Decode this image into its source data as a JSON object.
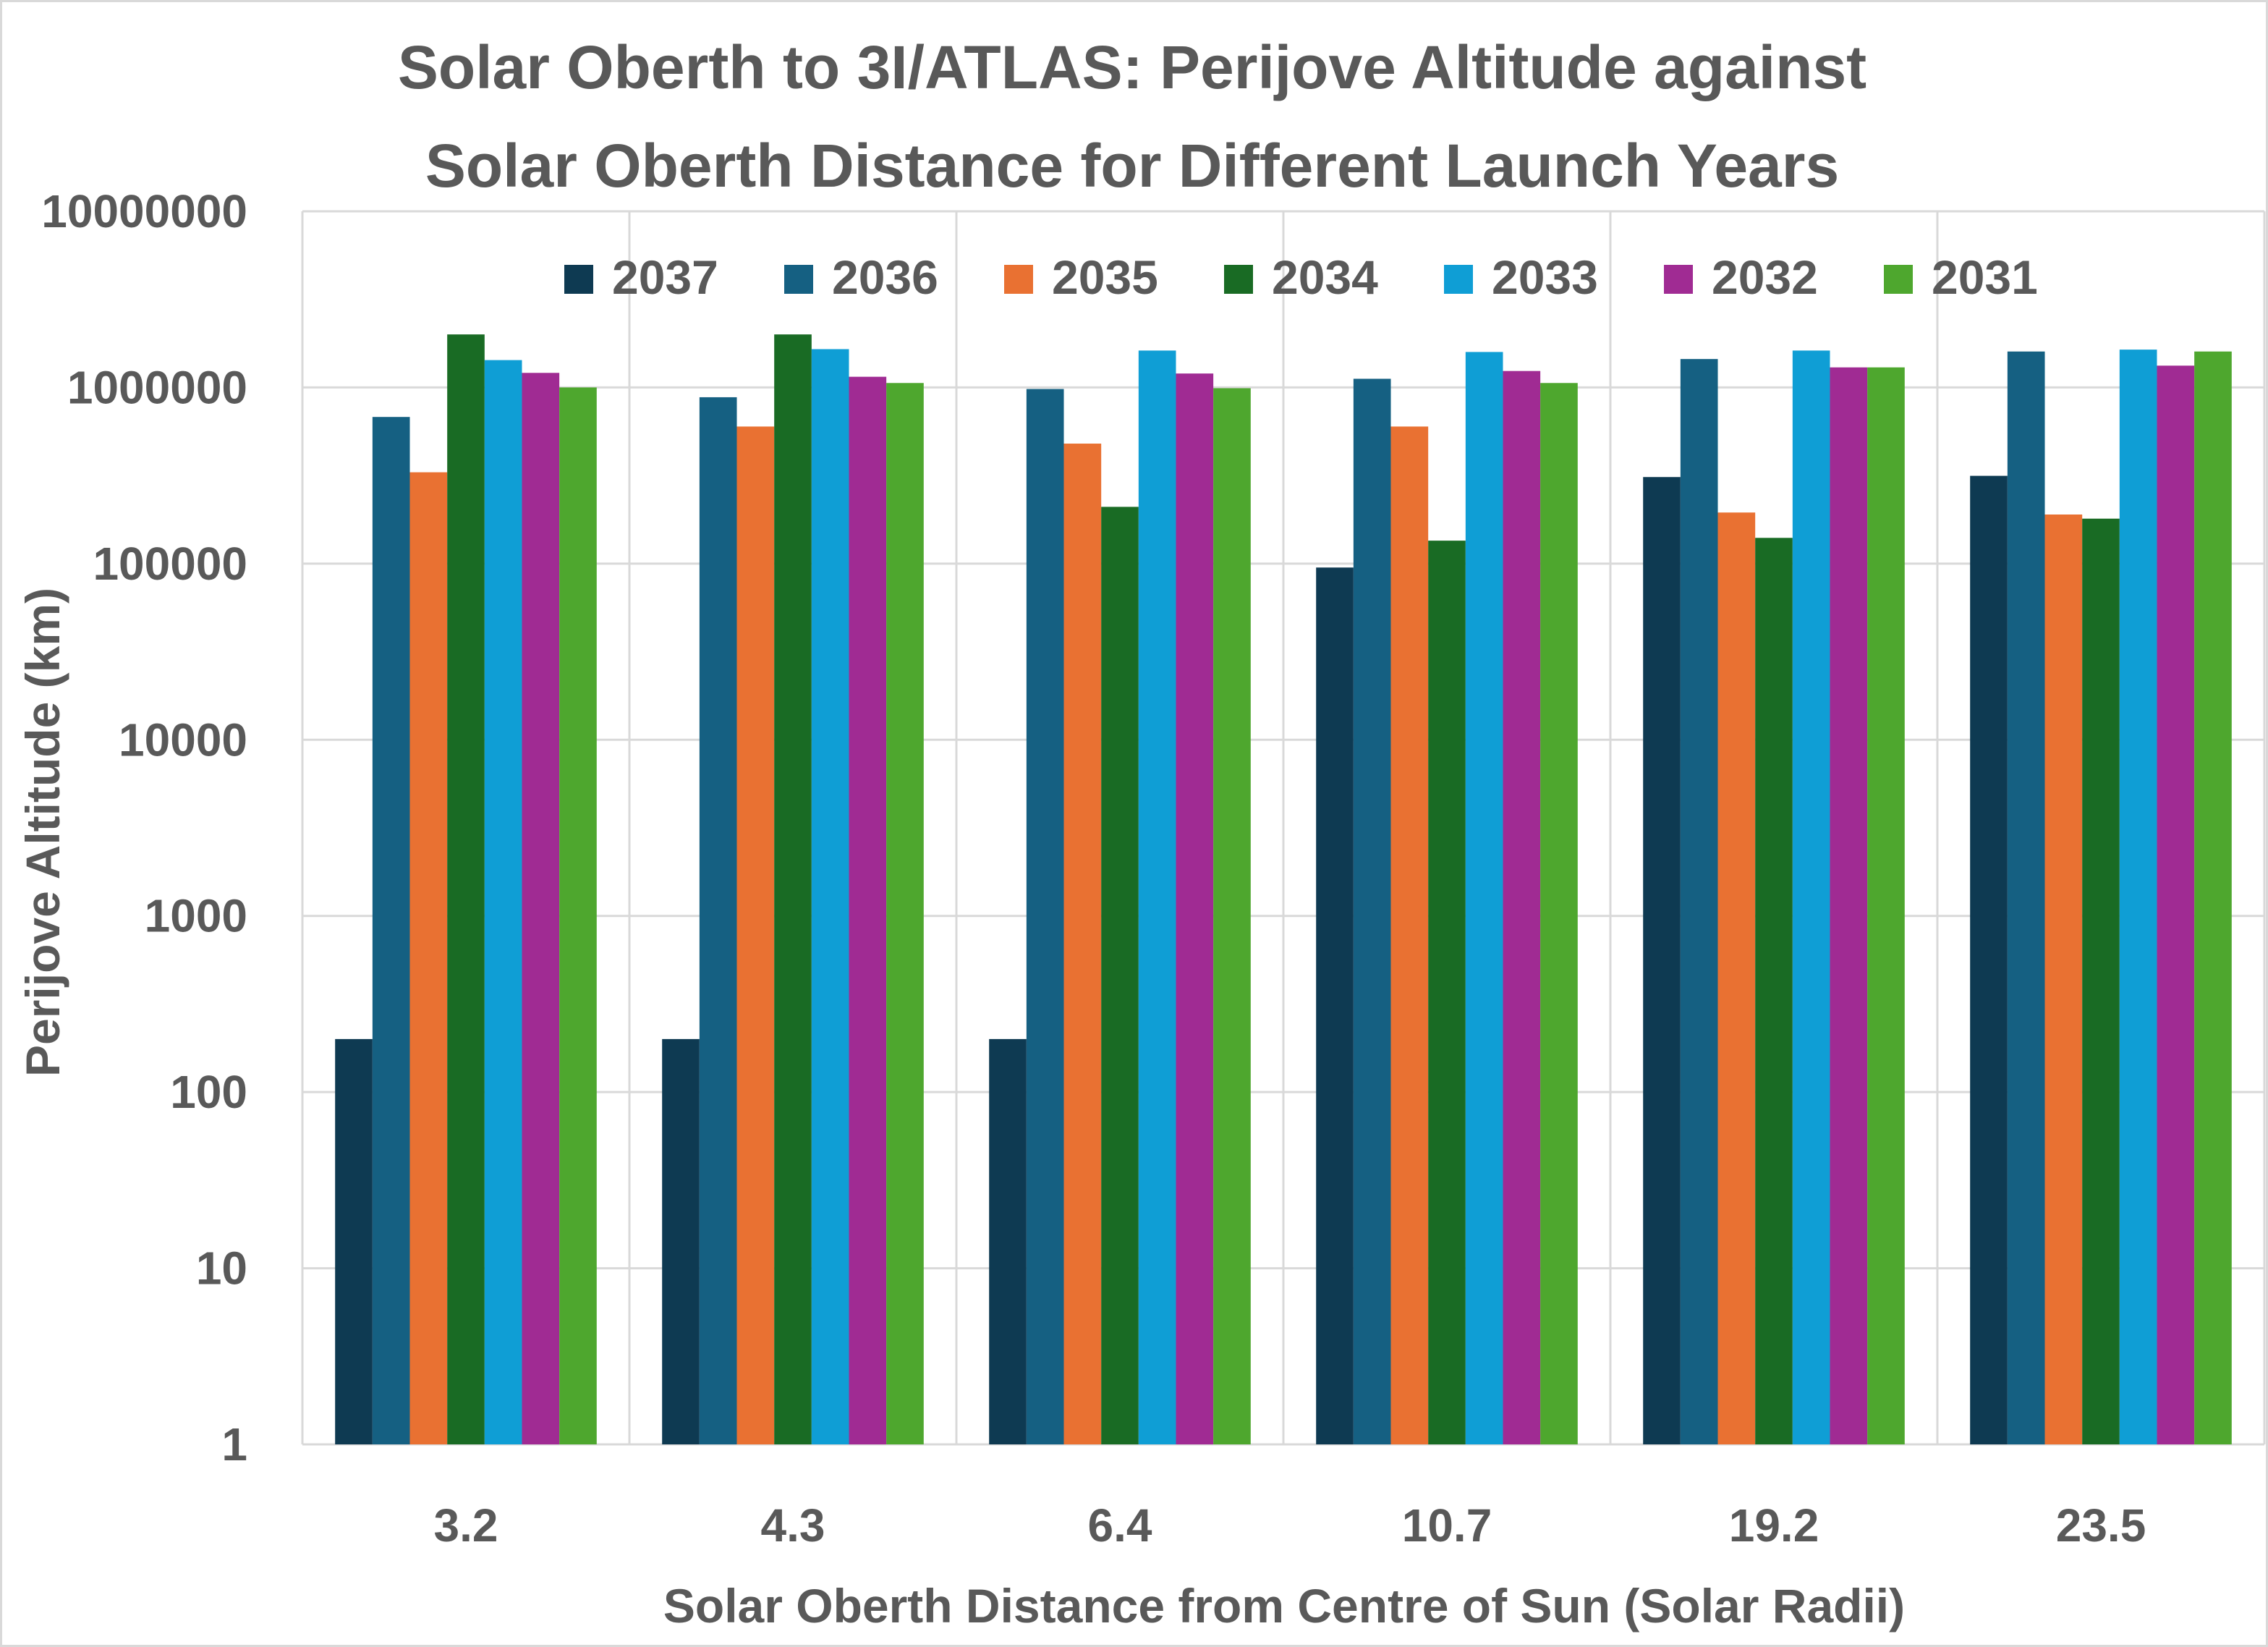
{
  "chart_data": {
    "type": "bar",
    "title_lines": [
      "Solar Oberth to 3I/ATLAS: Perijove Altitude against",
      "Solar Oberth Distance for Different Launch Years"
    ],
    "xlabel": "Solar Oberth Distance from Centre of Sun (Solar Radii)",
    "ylabel": "Perijove Altitude (km)",
    "yscale": "log",
    "ylim": [
      1,
      10000000
    ],
    "y_ticks": [
      "1",
      "10",
      "100",
      "1000",
      "10000",
      "100000",
      "1000000",
      "10000000"
    ],
    "grid": true,
    "legend_position": "top",
    "categories": [
      "3.2",
      "4.3",
      "6.4",
      "10.7",
      "19.2",
      "23.5"
    ],
    "series": [
      {
        "name": "2037",
        "color": "#0e3a52",
        "values": [
          200,
          200,
          200,
          95000,
          310000,
          315000
        ]
      },
      {
        "name": "2036",
        "color": "#156082",
        "values": [
          680000,
          880000,
          980000,
          1120000,
          1450000,
          1600000
        ]
      },
      {
        "name": "2035",
        "color": "#e97132",
        "values": [
          330000,
          600000,
          480000,
          600000,
          195000,
          190000
        ]
      },
      {
        "name": "2034",
        "color": "#196b24",
        "values": [
          2000000,
          2000000,
          210000,
          135000,
          140000,
          180000
        ]
      },
      {
        "name": "2033",
        "color": "#0f9ed5",
        "values": [
          1430000,
          1650000,
          1620000,
          1590000,
          1620000,
          1640000
        ]
      },
      {
        "name": "2032",
        "color": "#a02b93",
        "values": [
          1210000,
          1150000,
          1200000,
          1240000,
          1300000,
          1330000
        ]
      },
      {
        "name": "2031",
        "color": "#4ea72e",
        "values": [
          1000000,
          1060000,
          990000,
          1060000,
          1300000,
          1600000
        ]
      }
    ]
  }
}
